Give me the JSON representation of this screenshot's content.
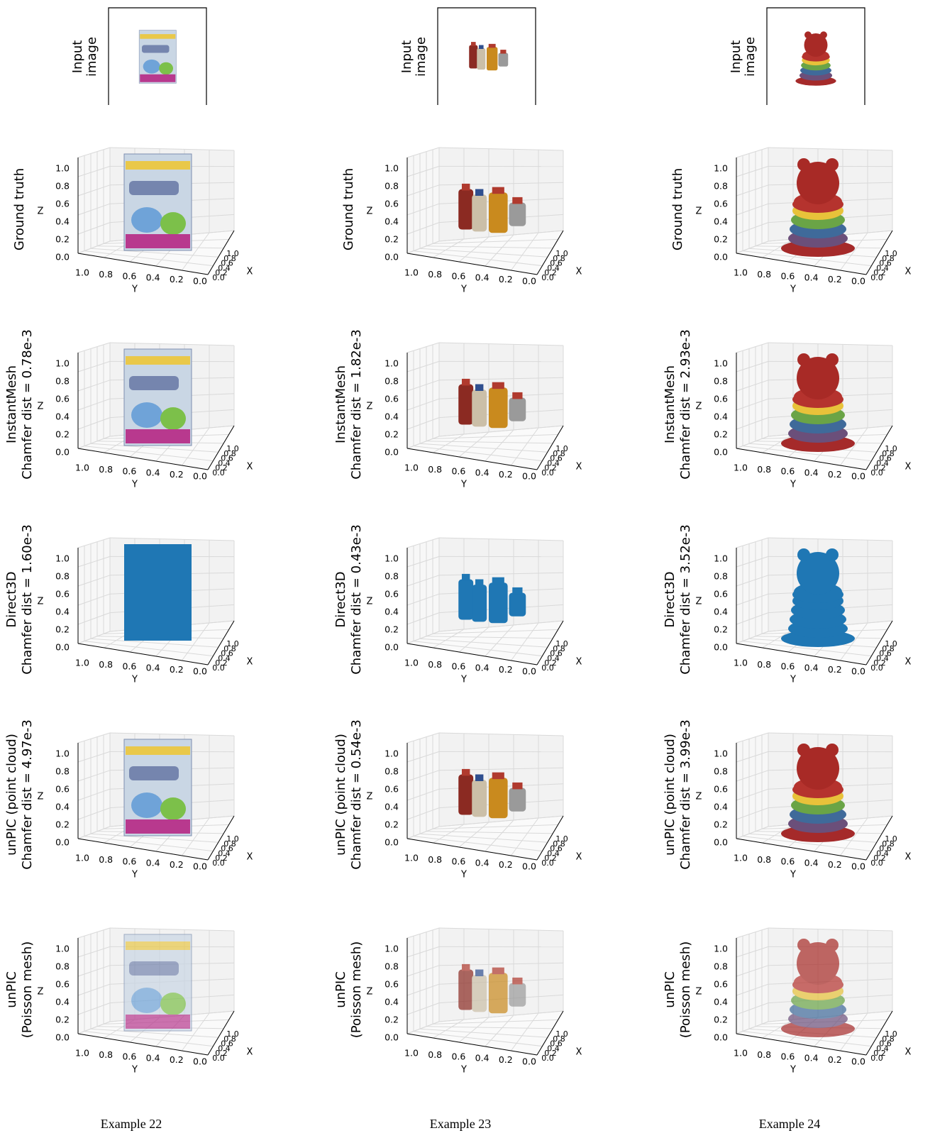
{
  "columns": [
    {
      "caption": "Example 22",
      "input_label": [
        "Input",
        "image"
      ],
      "rows": [
        [
          "Ground truth"
        ],
        [
          "InstantMesh",
          "Chamfer dist = 0.78e-3"
        ],
        [
          "Direct3D",
          "Chamfer dist = 1.60e-3"
        ],
        [
          "unPIC (point cloud)",
          "Chamfer dist = 4.97e-3"
        ],
        [
          "unPIC",
          "(Poisson mesh)"
        ]
      ]
    },
    {
      "caption": "Example 23",
      "input_label": [
        "Input",
        "image"
      ],
      "rows": [
        [
          "Ground truth"
        ],
        [
          "InstantMesh",
          "Chamfer dist = 1.82e-3"
        ],
        [
          "Direct3D",
          "Chamfer dist = 0.43e-3"
        ],
        [
          "unPIC (point cloud)",
          "Chamfer dist = 0.54e-3"
        ],
        [
          "unPIC",
          "(Poisson mesh)"
        ]
      ]
    },
    {
      "caption": "Example 24",
      "input_label": [
        "Input",
        "image"
      ],
      "rows": [
        [
          "Ground truth"
        ],
        [
          "InstantMesh",
          "Chamfer dist = 2.93e-3"
        ],
        [
          "Direct3D",
          "Chamfer dist = 3.52e-3"
        ],
        [
          "unPIC (point cloud)",
          "Chamfer dist = 3.99e-3"
        ],
        [
          "unPIC",
          "(Poisson mesh)"
        ]
      ]
    }
  ],
  "axes": {
    "z_label": "Z",
    "y_label": "Y",
    "x_label": "X",
    "z_ticks": [
      "0.0",
      "0.2",
      "0.4",
      "0.6",
      "0.8",
      "1.0"
    ],
    "y_ticks": [
      "1.0",
      "0.8",
      "0.6",
      "0.4",
      "0.2",
      "0.0"
    ],
    "x_ticks": [
      "0.0",
      "0.2",
      "0.4",
      "0.6",
      "0.8",
      "1.0"
    ]
  }
}
